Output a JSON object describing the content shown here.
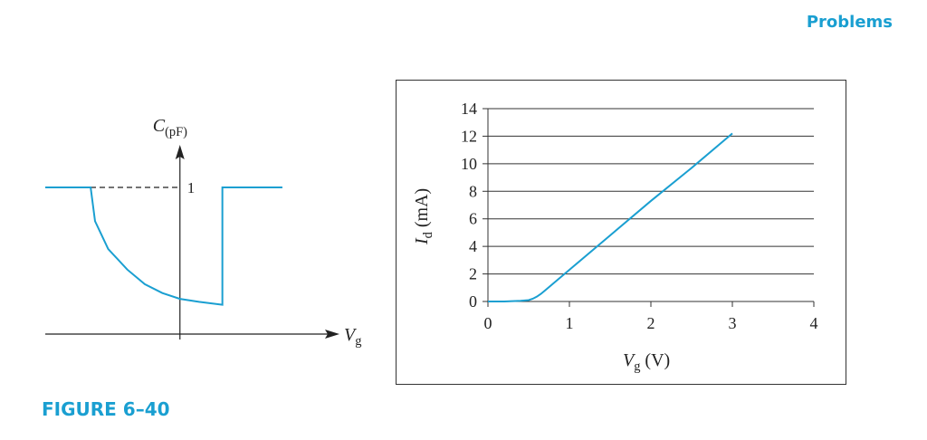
{
  "page": {
    "header": "Problems",
    "caption": "FIGURE 6–40"
  },
  "chart_data": [
    {
      "type": "line",
      "y_label": {
        "symbol": "C",
        "unit": "(pF)"
      },
      "x_label": {
        "symbol": "V",
        "subscript": "g"
      },
      "x": [
        -0.92,
        -0.61,
        -0.58,
        -0.49,
        -0.36,
        -0.24,
        -0.12,
        0,
        0.13,
        0.29,
        0.29,
        0.7
      ],
      "series": [
        {
          "color": "#1a9fd1",
          "values": [
            1,
            1,
            0.77,
            0.58,
            0.44,
            0.34,
            0.28,
            0.24,
            0.22,
            0.2,
            1,
            1
          ]
        }
      ],
      "xlim": [
        -0.92,
        1.09
      ],
      "ylim": [
        0,
        1.29
      ],
      "yticks": [
        1
      ]
    },
    {
      "type": "line",
      "y_label": {
        "symbol": "I",
        "subscript": "d",
        "unit": "(mA)"
      },
      "x_label": {
        "symbol": "V",
        "subscript": "g",
        "unit": "(V)"
      },
      "x": [
        0,
        0.2,
        0.4,
        0.5,
        0.55,
        0.6,
        0.65,
        0.7,
        0.8,
        1,
        1.5,
        2,
        2.5,
        3
      ],
      "series": [
        {
          "color": "#1a9fd1",
          "values": [
            0,
            0,
            0.05,
            0.1,
            0.2,
            0.35,
            0.55,
            0.8,
            1.3,
            2.3,
            4.8,
            7.3,
            9.7,
            12.2
          ]
        }
      ],
      "xlim": [
        0,
        4
      ],
      "ylim": [
        0,
        14
      ],
      "xticks": [
        0,
        1,
        2,
        3,
        4
      ],
      "yticks": [
        0,
        2,
        4,
        6,
        8,
        10,
        12,
        14
      ],
      "grid": true
    }
  ]
}
